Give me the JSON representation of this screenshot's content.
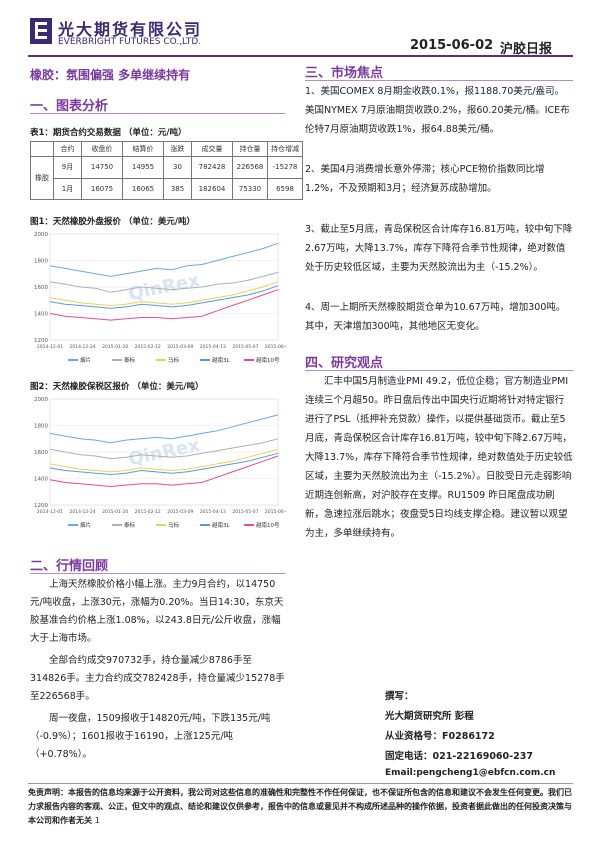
{
  "header": {
    "company_cn": "光大期货有限公司",
    "company_en": "EVERBRIGHT FUTURES CO.,LTD.",
    "date": "2015-06-02",
    "report_title": "沪胶日报"
  },
  "headline": "橡胶：氛围偏强 多单继续持有",
  "sections": {
    "chart_analysis": "一、图表分析",
    "market_review": "二、行情回顾",
    "market_focus": "三、市场焦点",
    "research_view": "四、研究观点"
  },
  "table1": {
    "caption": "表1：期货合约交易数据 （单位：元/吨）",
    "headers": [
      "合约",
      "收盘价",
      "结算价",
      "涨跌",
      "成交量",
      "持仓量",
      "持仓增减"
    ],
    "row_label": "橡胶",
    "rows": [
      [
        "9月",
        "14750",
        "14955",
        "30",
        "782428",
        "226568",
        "-15278"
      ],
      [
        "1月",
        "16075",
        "16065",
        "385",
        "182604",
        "75330",
        "6598"
      ]
    ]
  },
  "chart1": {
    "caption": "图1：天然橡胶外盘报价 （单位：美元/吨）",
    "watermark": "QinRex",
    "chart_data": {
      "type": "line",
      "title": "",
      "y_ticks": [
        "2000",
        "1800",
        "1600",
        "1400",
        "1200"
      ],
      "ylim": [
        1200,
        2000
      ],
      "x_ticks": [
        "2014-12-01",
        "2014-12-24",
        "2015-01-20",
        "2015-02-12",
        "2015-03-09",
        "2015-04-13",
        "2015-05-07",
        "2015-06-01"
      ],
      "legend": [
        "烟片",
        "泰标",
        "马标",
        "越南3L",
        "越南10号"
      ],
      "colors": [
        "#6aa8e8",
        "#b0b0b0",
        "#e9d25a",
        "#5a9ad8",
        "#e84a8a"
      ],
      "series": [
        {
          "name": "烟片",
          "values": [
            1760,
            1740,
            1720,
            1700,
            1680,
            1700,
            1720,
            1740,
            1730,
            1760,
            1770,
            1800,
            1830,
            1860,
            1890,
            1930
          ]
        },
        {
          "name": "泰标",
          "values": [
            1640,
            1620,
            1600,
            1590,
            1560,
            1580,
            1600,
            1590,
            1580,
            1590,
            1600,
            1620,
            1630,
            1650,
            1680,
            1710
          ]
        },
        {
          "name": "马标",
          "values": [
            1520,
            1500,
            1480,
            1470,
            1460,
            1470,
            1490,
            1480,
            1470,
            1480,
            1500,
            1520,
            1540,
            1570,
            1600,
            1640
          ]
        },
        {
          "name": "越南3L",
          "values": [
            1490,
            1470,
            1460,
            1450,
            1440,
            1450,
            1470,
            1460,
            1450,
            1460,
            1480,
            1500,
            1520,
            1540,
            1570,
            1610
          ]
        },
        {
          "name": "越南10号",
          "values": [
            1400,
            1380,
            1370,
            1360,
            1350,
            1360,
            1370,
            1370,
            1360,
            1370,
            1380,
            1420,
            1460,
            1500,
            1540,
            1580
          ]
        }
      ]
    }
  },
  "chart2": {
    "caption": "图2：天然橡胶保税区报价 （单位：美元/吨）",
    "watermark": "QinRex",
    "chart_data": {
      "type": "line",
      "title": "",
      "y_ticks": [
        "2000",
        "1800",
        "1600",
        "1400",
        "1200"
      ],
      "ylim": [
        1200,
        2000
      ],
      "x_ticks": [
        "2014-12-01",
        "2014-12-24",
        "2015-01-20",
        "2015-02-12",
        "2015-03-09",
        "2015-04-13",
        "2015-05-07",
        "2015-06-01"
      ],
      "legend": [
        "烟片",
        "泰标",
        "马标",
        "越南3L",
        "越南10号"
      ],
      "colors": [
        "#6aa8e8",
        "#b0b0b0",
        "#e9d25a",
        "#5a9ad8",
        "#e84a8a"
      ],
      "series": [
        {
          "name": "烟片",
          "values": [
            1740,
            1720,
            1700,
            1690,
            1670,
            1690,
            1700,
            1710,
            1700,
            1720,
            1740,
            1760,
            1790,
            1820,
            1850,
            1880
          ]
        },
        {
          "name": "泰标",
          "values": [
            1620,
            1600,
            1580,
            1570,
            1550,
            1560,
            1580,
            1570,
            1560,
            1570,
            1590,
            1610,
            1630,
            1650,
            1670,
            1700
          ]
        },
        {
          "name": "马标",
          "values": [
            1510,
            1490,
            1470,
            1460,
            1450,
            1460,
            1480,
            1470,
            1460,
            1470,
            1490,
            1510,
            1530,
            1560,
            1590,
            1620
          ]
        },
        {
          "name": "越南3L",
          "values": [
            1480,
            1460,
            1450,
            1440,
            1430,
            1440,
            1460,
            1450,
            1440,
            1450,
            1470,
            1490,
            1510,
            1530,
            1560,
            1590
          ]
        },
        {
          "name": "越南10号",
          "values": [
            1390,
            1370,
            1360,
            1350,
            1340,
            1350,
            1360,
            1360,
            1350,
            1360,
            1370,
            1410,
            1450,
            1490,
            1530,
            1570
          ]
        }
      ]
    }
  },
  "market_review": [
    "上海天然橡胶价格小幅上涨。主力9月合约，以14750元/吨收盘，上涨30元，涨幅为0.20%。当日14:30，东京天胶基准合约价格上涨1.08%，以243.8日元/公斤收盘，涨幅大于上海市场。",
    "全部合约成交970732手，持仓量减少8786手至314826手。主力合约成交782428手，持仓量减少15278手至226568手。",
    "周一夜盘，1509报收于14820元/吨，下跌135元/吨（-0.9%）；1601报收于16190，上涨125元/吨（+0.78%）。"
  ],
  "market_focus": [
    "1、美国COMEX 8月期金收跌0.1%，报1188.70美元/盎司。美国NYMEX 7月原油期货收跌0.2%，报60.20美元/桶。ICE布伦特7月原油期货收跌1%，报64.88美元/桶。",
    "2、美国4月消费增长意外停滞；核心PCE物价指数同比增1.2%，不及预期和3月；经济复苏成胁增加。",
    "3、截止至5月底，青岛保税区合计库存16.81万吨，较中旬下降2.67万吨，大降13.7%，库存下降符合季节性规律，绝对数值处于历史较低区域，主要为天然胶流出为主（-15.2%）。",
    "4、周一上期所天然橡胶期货仓单为10.67万吨，增加300吨。其中，天津增加300吨，其他地区无变化。"
  ],
  "research_view": "汇丰中国5月制造业PMI 49.2，低位企稳；官方制造业PMI连续三个月超50。昨日盘后传出中国央行近期将针对特定银行进行了PSL（抵押补充贷款）操作，以提供基础货币。截止至5月底，青岛保税区合计库存16.81万吨，较中旬下降2.67万吨，大降13.7%，库存下降符合季节性规律，绝对数值处于历史较低区域，主要为天然胶流出为主（-15.2%）。日胶受日元走弱影响近期连创新高，对沪胶存在支撑。RU1509 昨日尾盘成功刷新，急速拉涨后跳水；夜盘受5日均线支撑企稳。建议暂以观望为主，多单继续持有。",
  "author": {
    "label": "撰写：",
    "name": "光大期货研究所 彭程",
    "license": "从业资格号：F0286172",
    "phone": "固定电话：021-22169060-237",
    "email": "Email:pengcheng1@ebfcn.com.cn"
  },
  "disclaimer": "免责声明：本报告的信息均来源于公开资料，我公司对这些信息的准确性和完整性不作任何保证，也不保证所包含的信息和建议不会发生任何变更。我们已力求报告内容的客观、公正，但文中的观点、结论和建议仅供参考，报告中的信息或意见并不构成所述品种的操作依据，投资者据此做出的任何投资决策与本公司和作者无关",
  "page_number": "1"
}
